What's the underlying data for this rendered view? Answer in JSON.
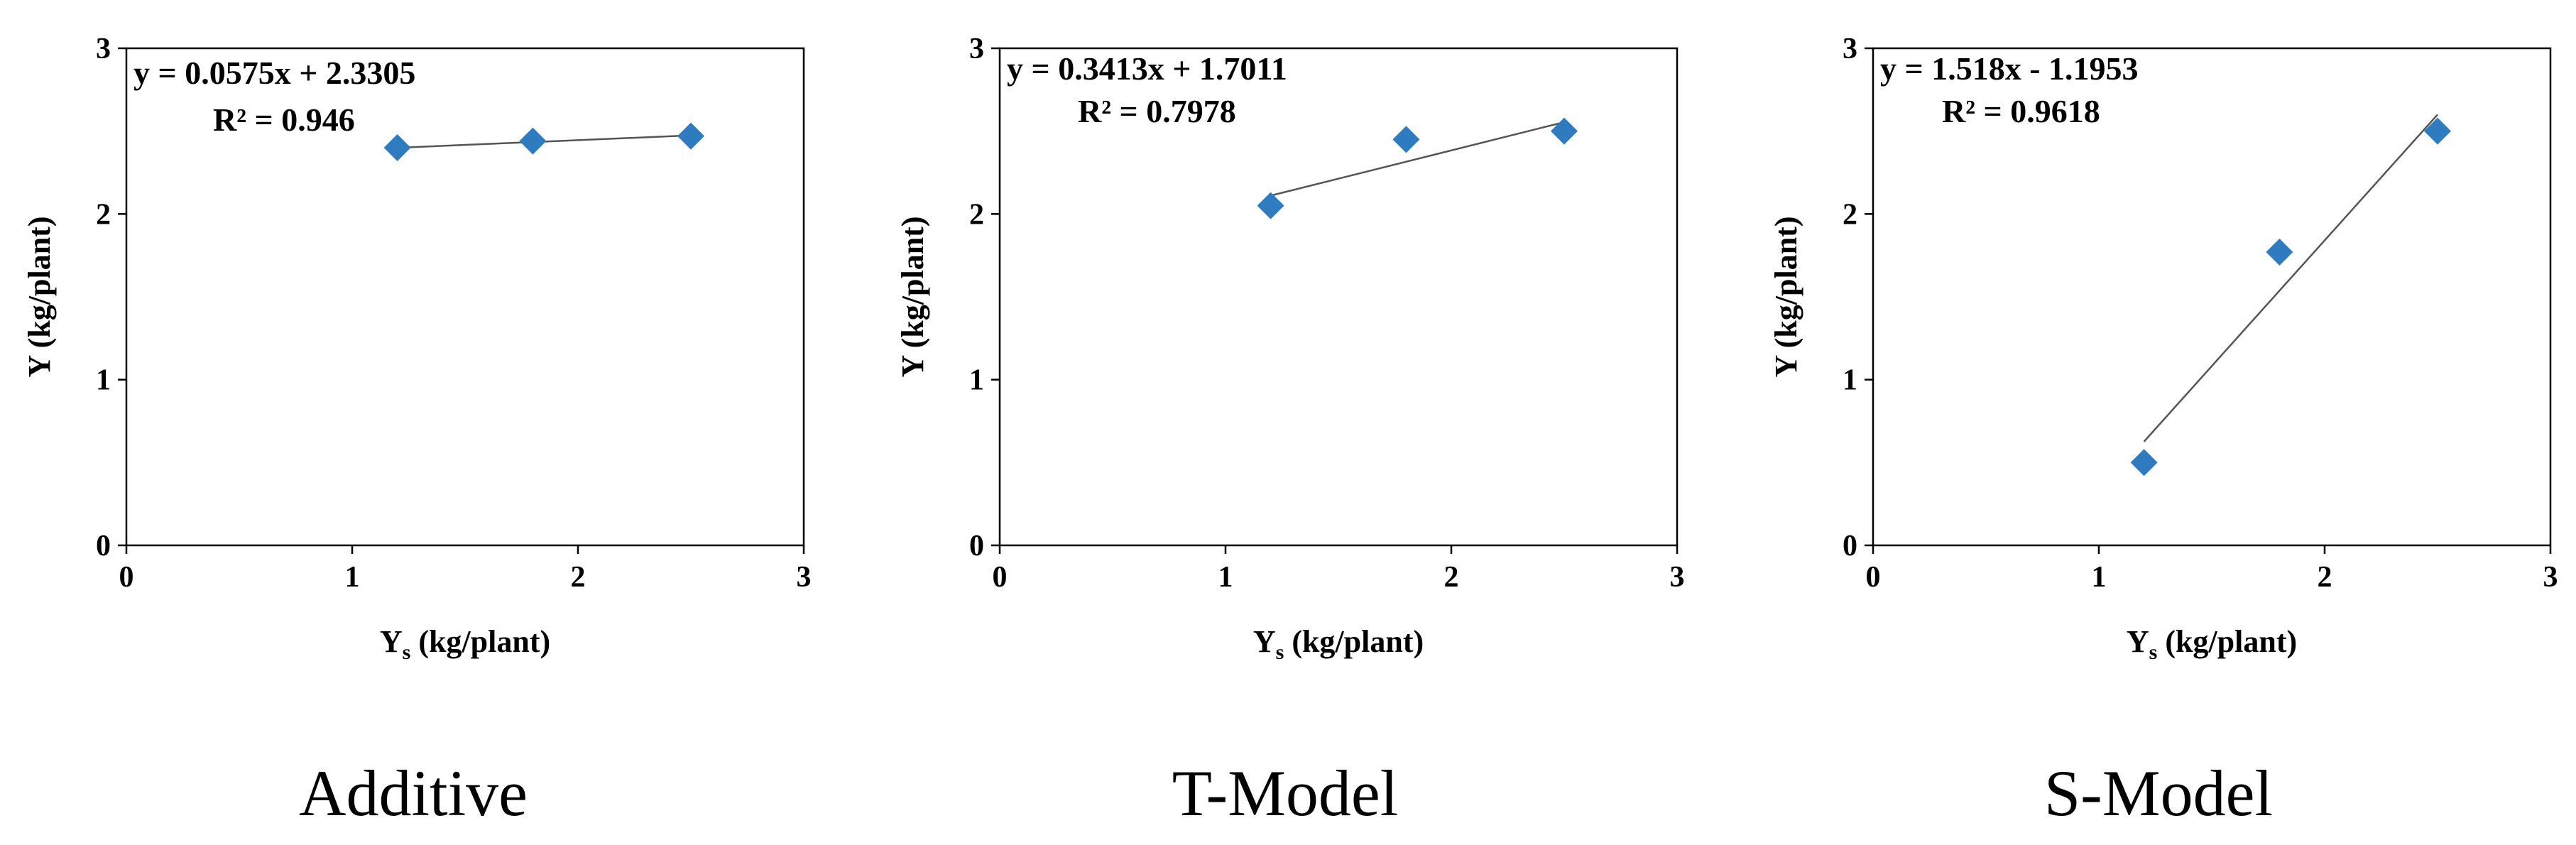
{
  "marker_color": "#2E7BBF",
  "chart_data": [
    {
      "type": "scatter",
      "caption": "Additive",
      "xlabel_main": "Y",
      "xlabel_sub": "s",
      "xlabel_rest": " (kg/plant)",
      "ylabel": "Y (kg/plant)",
      "xlim": [
        0,
        3
      ],
      "ylim": [
        0,
        3
      ],
      "xticks": [
        "0",
        "1",
        "2",
        "3"
      ],
      "yticks": [
        "0",
        "1",
        "2",
        "3"
      ],
      "points": [
        {
          "x": 1.2,
          "y": 2.4
        },
        {
          "x": 1.8,
          "y": 2.44
        },
        {
          "x": 2.5,
          "y": 2.47
        }
      ],
      "trendline": {
        "slope": 0.0575,
        "intercept": 2.3305,
        "x_range": [
          1.2,
          2.5
        ]
      },
      "equation": "y = 0.0575x + 2.3305",
      "r2": "R² = 0.946"
    },
    {
      "type": "scatter",
      "caption": "T-Model",
      "xlabel_main": "Y",
      "xlabel_sub": "s",
      "xlabel_rest": " (kg/plant)",
      "ylabel": "Y (kg/plant)",
      "xlim": [
        0,
        3
      ],
      "ylim": [
        0,
        3
      ],
      "xticks": [
        "0",
        "1",
        "2",
        "3"
      ],
      "yticks": [
        "0",
        "1",
        "2",
        "3"
      ],
      "points": [
        {
          "x": 1.2,
          "y": 2.05
        },
        {
          "x": 1.8,
          "y": 2.45
        },
        {
          "x": 2.5,
          "y": 2.5
        }
      ],
      "trendline": {
        "slope": 0.3413,
        "intercept": 1.7011,
        "x_range": [
          1.2,
          2.5
        ]
      },
      "equation": "y = 0.3413x + 1.7011",
      "r2": "R² = 0.7978"
    },
    {
      "type": "scatter",
      "caption": "S-Model",
      "xlabel_main": "Y",
      "xlabel_sub": "s",
      "xlabel_rest": " (kg/plant)",
      "ylabel": "Y (kg/plant)",
      "xlim": [
        0,
        3
      ],
      "ylim": [
        0,
        3
      ],
      "xticks": [
        "0",
        "1",
        "2",
        "3"
      ],
      "yticks": [
        "0",
        "1",
        "2",
        "3"
      ],
      "points": [
        {
          "x": 1.2,
          "y": 0.5
        },
        {
          "x": 1.8,
          "y": 1.77
        },
        {
          "x": 2.5,
          "y": 2.5
        }
      ],
      "trendline": {
        "slope": 1.518,
        "intercept": -1.1953,
        "x_range": [
          1.2,
          2.5
        ]
      },
      "equation": "y = 1.518x - 1.1953",
      "r2": "R² = 0.9618"
    }
  ]
}
